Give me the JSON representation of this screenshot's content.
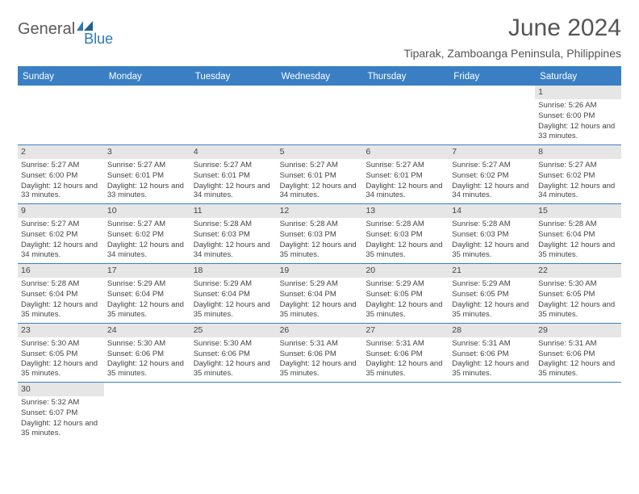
{
  "brand": {
    "general": "General",
    "blue": "Blue"
  },
  "title": "June 2024",
  "location": "Tiparak, Zamboanga Peninsula, Philippines",
  "colors": {
    "header_bg": "#3a7fc4",
    "header_text": "#ffffff",
    "daynum_bg": "#e6e6e6",
    "border": "#3a7fc4",
    "text": "#444444",
    "title": "#555555"
  },
  "day_headers": [
    "Sunday",
    "Monday",
    "Tuesday",
    "Wednesday",
    "Thursday",
    "Friday",
    "Saturday"
  ],
  "weeks": [
    [
      null,
      null,
      null,
      null,
      null,
      null,
      {
        "n": "1",
        "sr": "Sunrise: 5:26 AM",
        "ss": "Sunset: 6:00 PM",
        "dl": "Daylight: 12 hours and 33 minutes."
      }
    ],
    [
      {
        "n": "2",
        "sr": "Sunrise: 5:27 AM",
        "ss": "Sunset: 6:00 PM",
        "dl": "Daylight: 12 hours and 33 minutes."
      },
      {
        "n": "3",
        "sr": "Sunrise: 5:27 AM",
        "ss": "Sunset: 6:01 PM",
        "dl": "Daylight: 12 hours and 33 minutes."
      },
      {
        "n": "4",
        "sr": "Sunrise: 5:27 AM",
        "ss": "Sunset: 6:01 PM",
        "dl": "Daylight: 12 hours and 34 minutes."
      },
      {
        "n": "5",
        "sr": "Sunrise: 5:27 AM",
        "ss": "Sunset: 6:01 PM",
        "dl": "Daylight: 12 hours and 34 minutes."
      },
      {
        "n": "6",
        "sr": "Sunrise: 5:27 AM",
        "ss": "Sunset: 6:01 PM",
        "dl": "Daylight: 12 hours and 34 minutes."
      },
      {
        "n": "7",
        "sr": "Sunrise: 5:27 AM",
        "ss": "Sunset: 6:02 PM",
        "dl": "Daylight: 12 hours and 34 minutes."
      },
      {
        "n": "8",
        "sr": "Sunrise: 5:27 AM",
        "ss": "Sunset: 6:02 PM",
        "dl": "Daylight: 12 hours and 34 minutes."
      }
    ],
    [
      {
        "n": "9",
        "sr": "Sunrise: 5:27 AM",
        "ss": "Sunset: 6:02 PM",
        "dl": "Daylight: 12 hours and 34 minutes."
      },
      {
        "n": "10",
        "sr": "Sunrise: 5:27 AM",
        "ss": "Sunset: 6:02 PM",
        "dl": "Daylight: 12 hours and 34 minutes."
      },
      {
        "n": "11",
        "sr": "Sunrise: 5:28 AM",
        "ss": "Sunset: 6:03 PM",
        "dl": "Daylight: 12 hours and 34 minutes."
      },
      {
        "n": "12",
        "sr": "Sunrise: 5:28 AM",
        "ss": "Sunset: 6:03 PM",
        "dl": "Daylight: 12 hours and 35 minutes."
      },
      {
        "n": "13",
        "sr": "Sunrise: 5:28 AM",
        "ss": "Sunset: 6:03 PM",
        "dl": "Daylight: 12 hours and 35 minutes."
      },
      {
        "n": "14",
        "sr": "Sunrise: 5:28 AM",
        "ss": "Sunset: 6:03 PM",
        "dl": "Daylight: 12 hours and 35 minutes."
      },
      {
        "n": "15",
        "sr": "Sunrise: 5:28 AM",
        "ss": "Sunset: 6:04 PM",
        "dl": "Daylight: 12 hours and 35 minutes."
      }
    ],
    [
      {
        "n": "16",
        "sr": "Sunrise: 5:28 AM",
        "ss": "Sunset: 6:04 PM",
        "dl": "Daylight: 12 hours and 35 minutes."
      },
      {
        "n": "17",
        "sr": "Sunrise: 5:29 AM",
        "ss": "Sunset: 6:04 PM",
        "dl": "Daylight: 12 hours and 35 minutes."
      },
      {
        "n": "18",
        "sr": "Sunrise: 5:29 AM",
        "ss": "Sunset: 6:04 PM",
        "dl": "Daylight: 12 hours and 35 minutes."
      },
      {
        "n": "19",
        "sr": "Sunrise: 5:29 AM",
        "ss": "Sunset: 6:04 PM",
        "dl": "Daylight: 12 hours and 35 minutes."
      },
      {
        "n": "20",
        "sr": "Sunrise: 5:29 AM",
        "ss": "Sunset: 6:05 PM",
        "dl": "Daylight: 12 hours and 35 minutes."
      },
      {
        "n": "21",
        "sr": "Sunrise: 5:29 AM",
        "ss": "Sunset: 6:05 PM",
        "dl": "Daylight: 12 hours and 35 minutes."
      },
      {
        "n": "22",
        "sr": "Sunrise: 5:30 AM",
        "ss": "Sunset: 6:05 PM",
        "dl": "Daylight: 12 hours and 35 minutes."
      }
    ],
    [
      {
        "n": "23",
        "sr": "Sunrise: 5:30 AM",
        "ss": "Sunset: 6:05 PM",
        "dl": "Daylight: 12 hours and 35 minutes."
      },
      {
        "n": "24",
        "sr": "Sunrise: 5:30 AM",
        "ss": "Sunset: 6:06 PM",
        "dl": "Daylight: 12 hours and 35 minutes."
      },
      {
        "n": "25",
        "sr": "Sunrise: 5:30 AM",
        "ss": "Sunset: 6:06 PM",
        "dl": "Daylight: 12 hours and 35 minutes."
      },
      {
        "n": "26",
        "sr": "Sunrise: 5:31 AM",
        "ss": "Sunset: 6:06 PM",
        "dl": "Daylight: 12 hours and 35 minutes."
      },
      {
        "n": "27",
        "sr": "Sunrise: 5:31 AM",
        "ss": "Sunset: 6:06 PM",
        "dl": "Daylight: 12 hours and 35 minutes."
      },
      {
        "n": "28",
        "sr": "Sunrise: 5:31 AM",
        "ss": "Sunset: 6:06 PM",
        "dl": "Daylight: 12 hours and 35 minutes."
      },
      {
        "n": "29",
        "sr": "Sunrise: 5:31 AM",
        "ss": "Sunset: 6:06 PM",
        "dl": "Daylight: 12 hours and 35 minutes."
      }
    ],
    [
      {
        "n": "30",
        "sr": "Sunrise: 5:32 AM",
        "ss": "Sunset: 6:07 PM",
        "dl": "Daylight: 12 hours and 35 minutes."
      },
      null,
      null,
      null,
      null,
      null,
      null
    ]
  ]
}
